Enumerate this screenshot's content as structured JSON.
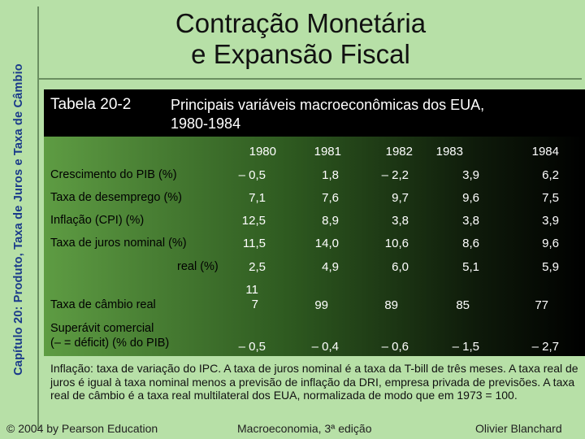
{
  "side_label": "Capítulo 20: Produto, Taxa de Juros e Taxa de Câmbio",
  "title_line1": "Contração Monetária",
  "title_line2": "e Expansão Fiscal",
  "table": {
    "number": "Tabela 20-2",
    "title_line1": "Principais variáveis macroeconômicas dos EUA,",
    "title_line2": "1980-1984",
    "years": [
      "1980",
      "1981",
      "1982",
      "1983",
      "1984"
    ],
    "rows": [
      {
        "label": "Crescimento do PIB (%)",
        "values": [
          "– 0,5",
          "1,8",
          "– 2,2",
          "3,9",
          "6,2"
        ]
      },
      {
        "label": "Taxa de desemprego (%)",
        "values": [
          "7,1",
          "7,6",
          "9,7",
          "9,6",
          "7,5"
        ]
      },
      {
        "label": "Inflação (CPI) (%)",
        "values": [
          "12,5",
          "8,9",
          "3,8",
          "3,8",
          "3,9"
        ]
      },
      {
        "label": "Taxa de juros nominal (%)",
        "values": [
          "11,5",
          "14,0",
          "10,6",
          "8,6",
          "9,6"
        ]
      },
      {
        "label": "real (%)",
        "values": [
          "2,5",
          "4,9",
          "6,0",
          "5,1",
          "5,9"
        ]
      },
      {
        "label": "Taxa de câmbio real",
        "values": [
          "11",
          "99",
          "89",
          "85",
          "77"
        ],
        "first_value_line2": "7"
      },
      {
        "label_line1": "Superávit comercial",
        "label_line2": "(– = déficit) (% do PIB)",
        "values": [
          "– 0,5",
          "– 0,4",
          "– 0,6",
          "– 1,5",
          "– 2,7"
        ]
      }
    ]
  },
  "note": "Inflação: taxa de variação do IPC. A taxa de juros nominal é a taxa da T-bill de três meses. A taxa real de juros é igual à taxa nominal menos a previsão de inflação da DRI, empresa privada de previsões. A taxa real de câmbio é a taxa real multilateral dos EUA, normalizada de modo que em 1973 = 100.",
  "footer": {
    "left": "© 2004 by Pearson Education",
    "center": "Macroeconomia, 3ª edição",
    "right": "Olivier Blanchard"
  }
}
